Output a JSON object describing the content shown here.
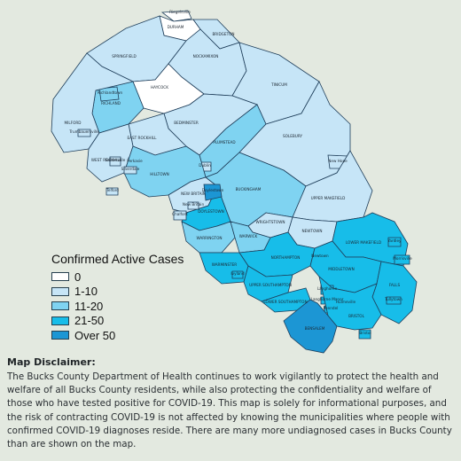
{
  "map": {
    "colors": {
      "none": "#ffffff",
      "low": "#c6e5f7",
      "mid": "#7fd3f1",
      "high": "#17bde9",
      "over": "#1c96d4"
    },
    "municipalities": [
      {
        "key": "riegelsville",
        "name": "Riegelsville",
        "level": "none"
      },
      {
        "key": "durham",
        "name": "DURHAM",
        "level": "none"
      },
      {
        "key": "bridgeton",
        "name": "BRIDGETON",
        "level": "low"
      },
      {
        "key": "springfield",
        "name": "SPRINGFIELD",
        "level": "low"
      },
      {
        "key": "nockamixon",
        "name": "NOCKAMIXON",
        "level": "low"
      },
      {
        "key": "tinicum",
        "name": "TINICUM",
        "level": "low"
      },
      {
        "key": "haycock",
        "name": "HAYCOCK",
        "level": "none"
      },
      {
        "key": "richland",
        "name": "RICHLAND",
        "level": "mid"
      },
      {
        "key": "richlandtown",
        "name": "Richlandtown",
        "level": "mid"
      },
      {
        "key": "milford",
        "name": "MILFORD",
        "level": "low"
      },
      {
        "key": "trumbauersville",
        "name": "Trumbauersville",
        "level": "low"
      },
      {
        "key": "bedminster",
        "name": "BEDMINSTER",
        "level": "low"
      },
      {
        "key": "east-rockhill",
        "name": "EAST ROCKHILL",
        "level": "low"
      },
      {
        "key": "west-rockhill",
        "name": "WEST ROCKHILL",
        "level": "low"
      },
      {
        "key": "sellersville",
        "name": "Sellersville",
        "level": "low"
      },
      {
        "key": "perkasie",
        "name": "Perkasie",
        "level": "low"
      },
      {
        "key": "plumstead",
        "name": "PLUMSTEAD",
        "level": "mid"
      },
      {
        "key": "solebury",
        "name": "SOLEBURY",
        "level": "low"
      },
      {
        "key": "new-hope",
        "name": "New Hope",
        "level": "low"
      },
      {
        "key": "dublin",
        "name": "Dublin",
        "level": "low"
      },
      {
        "key": "hilltown",
        "name": "HILLTOWN",
        "level": "mid"
      },
      {
        "key": "silverdale",
        "name": "Silverdale",
        "level": "low"
      },
      {
        "key": "telford",
        "name": "Telford",
        "level": "low"
      },
      {
        "key": "new-britain-twp",
        "name": "NEW BRITAIN",
        "level": "low"
      },
      {
        "key": "buckingham",
        "name": "BUCKINGHAM",
        "level": "mid"
      },
      {
        "key": "upper-makefield",
        "name": "UPPER MAKEFIELD",
        "level": "low"
      },
      {
        "key": "doylestown-twp",
        "name": "DOYLESTOWN",
        "level": "high"
      },
      {
        "key": "doylestown-boro",
        "name": "Doylestown",
        "level": "over"
      },
      {
        "key": "chalfont",
        "name": "Chalfont",
        "level": "low"
      },
      {
        "key": "new-britain-boro",
        "name": "New Britain",
        "level": "low"
      },
      {
        "key": "wrightstown",
        "name": "WRIGHTSTOWN",
        "level": "low"
      },
      {
        "key": "newtown-twp",
        "name": "NEWTOWN",
        "level": "low"
      },
      {
        "key": "warrington",
        "name": "WARRINGTON",
        "level": "mid"
      },
      {
        "key": "warwick",
        "name": "WARWICK",
        "level": "mid"
      },
      {
        "key": "lower-makefield",
        "name": "LOWER MAKEFIELD",
        "level": "high"
      },
      {
        "key": "yardley",
        "name": "Yardley",
        "level": "high"
      },
      {
        "key": "newtown-boro",
        "name": "Newtown",
        "level": "high"
      },
      {
        "key": "northampton",
        "name": "NORTHAMPTON",
        "level": "high"
      },
      {
        "key": "warminster",
        "name": "WARMINSTER",
        "level": "high"
      },
      {
        "key": "ivyland",
        "name": "Ivyland",
        "level": "high"
      },
      {
        "key": "middletown",
        "name": "MIDDLETOWN",
        "level": "high"
      },
      {
        "key": "falls",
        "name": "FALLS",
        "level": "high"
      },
      {
        "key": "morrisville",
        "name": "Morrisville",
        "level": "high"
      },
      {
        "key": "upper-southampton",
        "name": "UPPER SOUTHAMPTON",
        "level": "high"
      },
      {
        "key": "lower-southampton",
        "name": "LOWER SOUTHAMPTON",
        "level": "high"
      },
      {
        "key": "langhorne",
        "name": "Langhorne",
        "level": "high"
      },
      {
        "key": "langhorne-manor",
        "name": "Langhorne Manor",
        "level": "high"
      },
      {
        "key": "penndel",
        "name": "Penndel",
        "level": "high"
      },
      {
        "key": "hulmeville",
        "name": "Hulmeville",
        "level": "high"
      },
      {
        "key": "tullytown",
        "name": "Tullytown",
        "level": "high"
      },
      {
        "key": "bensalem",
        "name": "BENSALEM",
        "level": "over"
      },
      {
        "key": "bristol-twp",
        "name": "BRISTOL",
        "level": "high"
      },
      {
        "key": "bristol-boro",
        "name": "Bristol",
        "level": "high"
      }
    ]
  },
  "legend": {
    "title": "Confirmed Active Cases",
    "items": [
      {
        "label": "0",
        "color": "#ffffff"
      },
      {
        "label": "1-10",
        "color": "#c6e5f7"
      },
      {
        "label": "11-20",
        "color": "#7fd3f1"
      },
      {
        "label": "21-50",
        "color": "#17bde9"
      },
      {
        "label": "Over 50",
        "color": "#1c96d4"
      }
    ]
  },
  "disclaimer": {
    "title": "Map Disclaimer:",
    "body": "The Bucks County Department of Health continues to work vigilantly to protect the health and welfare of all Bucks County residents, while also protecting the confidentiality and welfare of those who have tested positive for COVID-19. This map is solely for informational purposes, and the risk of contracting COVID-19 is not affected by knowing the municipalities where people with confirmed COVID-19 diagnoses reside. There are many more undiagnosed cases in Bucks County than are shown on the map."
  }
}
